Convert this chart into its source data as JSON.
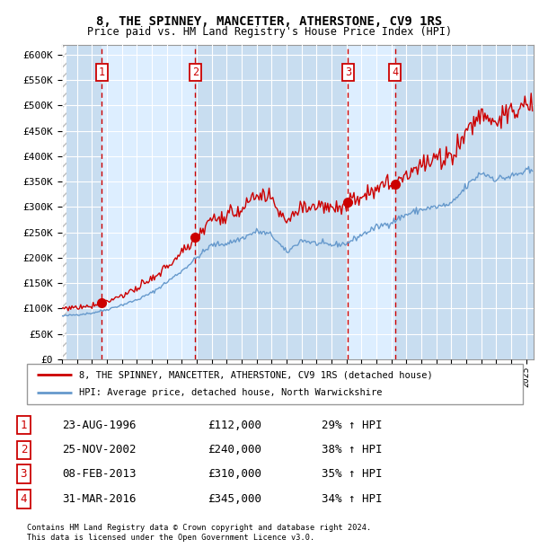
{
  "title1": "8, THE SPINNEY, MANCETTER, ATHERSTONE, CV9 1RS",
  "title2": "Price paid vs. HM Land Registry's House Price Index (HPI)",
  "background_color": "#ffffff",
  "plot_bg_color": "#ddeeff",
  "plot_bg_alt_color": "#c8ddf0",
  "grid_color": "#ffffff",
  "sale_dates_decimal": [
    1996.644,
    2002.896,
    2013.103,
    2016.247
  ],
  "sale_prices": [
    112000,
    240000,
    310000,
    345000
  ],
  "sale_labels": [
    "1",
    "2",
    "3",
    "4"
  ],
  "legend_house": "8, THE SPINNEY, MANCETTER, ATHERSTONE, CV9 1RS (detached house)",
  "legend_hpi": "HPI: Average price, detached house, North Warwickshire",
  "table_entries": [
    [
      "1",
      "23-AUG-1996",
      "£112,000",
      "29% ↑ HPI"
    ],
    [
      "2",
      "25-NOV-2002",
      "£240,000",
      "38% ↑ HPI"
    ],
    [
      "3",
      "08-FEB-2013",
      "£310,000",
      "35% ↑ HPI"
    ],
    [
      "4",
      "31-MAR-2016",
      "£345,000",
      "34% ↑ HPI"
    ]
  ],
  "footnote1": "Contains HM Land Registry data © Crown copyright and database right 2024.",
  "footnote2": "This data is licensed under the Open Government Licence v3.0.",
  "yticks": [
    0,
    50000,
    100000,
    150000,
    200000,
    250000,
    300000,
    350000,
    400000,
    450000,
    500000,
    550000,
    600000
  ],
  "house_line_color": "#cc0000",
  "hpi_line_color": "#6699cc",
  "sale_marker_color": "#cc0000",
  "vline_color": "#cc0000",
  "num_box_color": "#cc0000",
  "xmin": 1994.0,
  "xmax": 2025.5
}
